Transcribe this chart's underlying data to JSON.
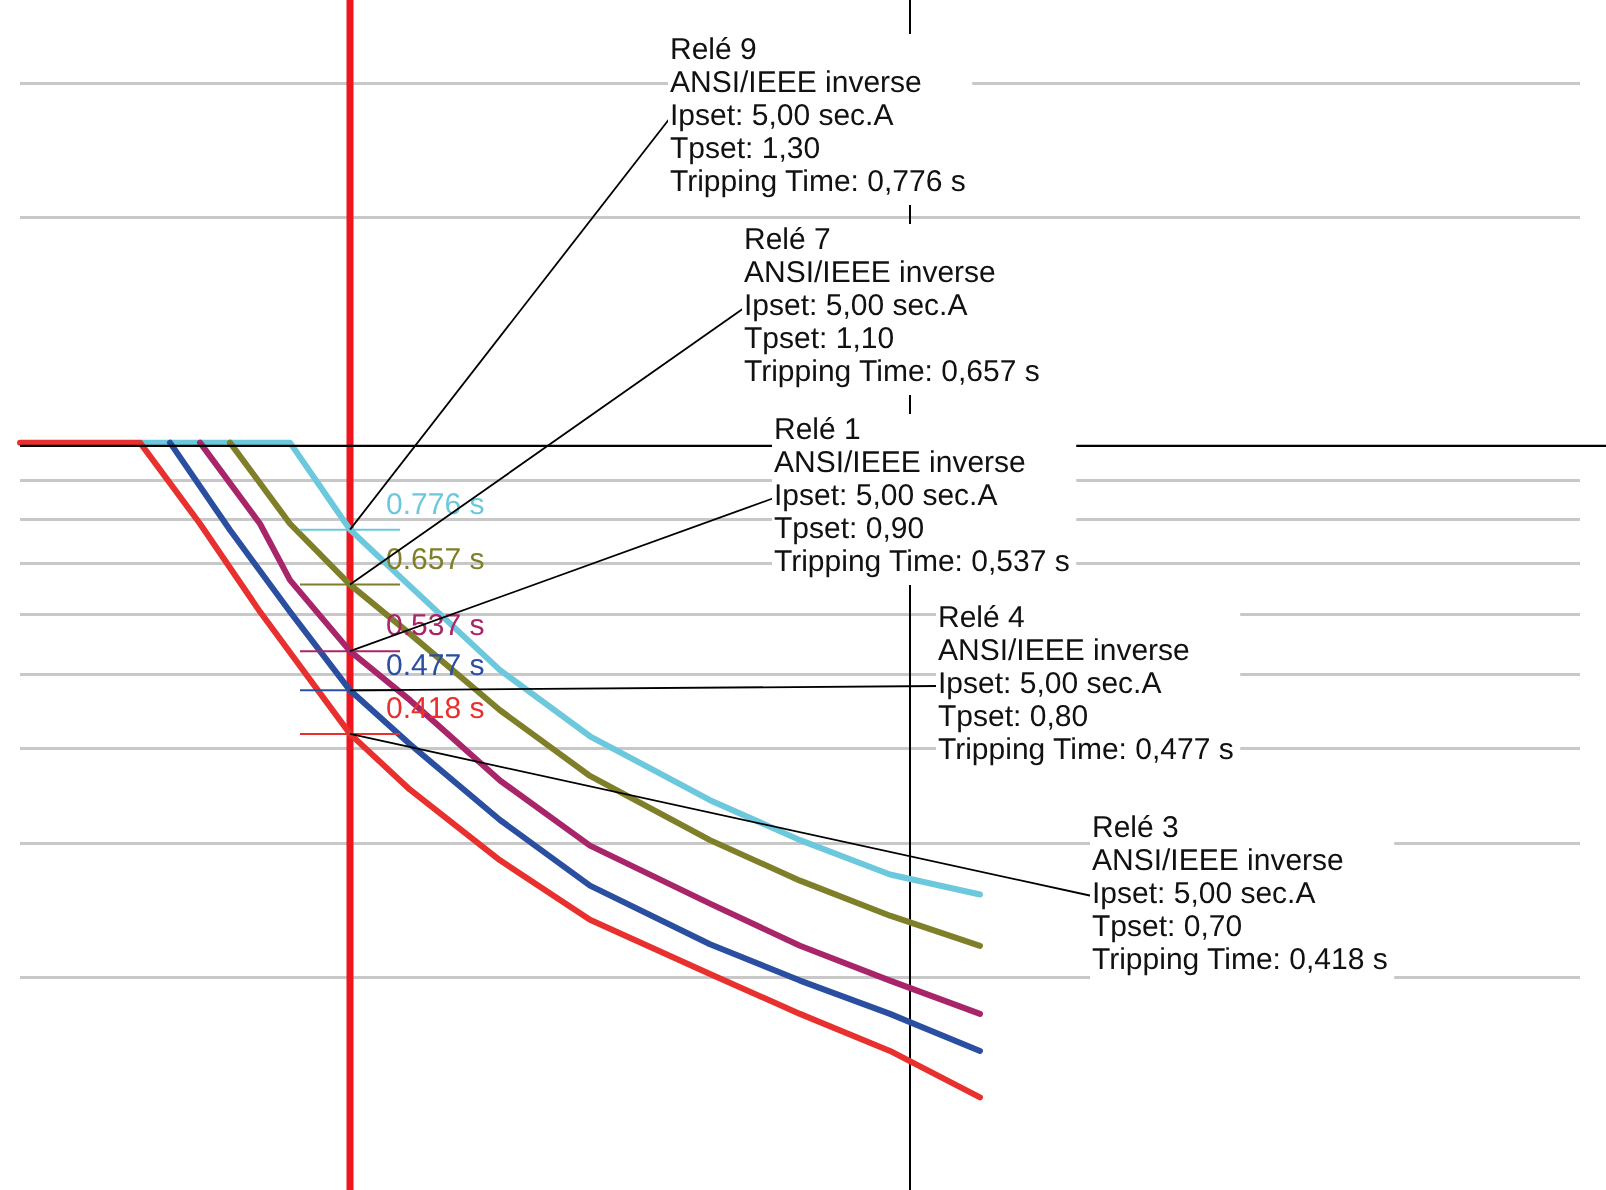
{
  "chart_data": {
    "type": "line",
    "categories": [
      null,
      null,
      null,
      null,
      null,
      null,
      null,
      null,
      null,
      null,
      null,
      null,
      null,
      null,
      null,
      null,
      null,
      null,
      null,
      null,
      null,
      null,
      null,
      null,
      null,
      null,
      null,
      null,
      null,
      null,
      null,
      null,
      null,
      null,
      null,
      null,
      null,
      null,
      null,
      null,
      null,
      null,
      null,
      null,
      null,
      null,
      null,
      null,
      null,
      null,
      null,
      null,
      null
    ],
    "series": [
      {
        "color": "#e8312f",
        "values": [
          1.01,
          null,
          null,
          null,
          1.01,
          null,
          0.79,
          null,
          0.605,
          null,
          null,
          0.418,
          null,
          0.353,
          null,
          null,
          0.285,
          null,
          null,
          0.238,
          null,
          null,
          null,
          0.202,
          null,
          null,
          0.179,
          null,
          null,
          0.16,
          null,
          null,
          0.139,
          null,
          null,
          null,
          null,
          null,
          null,
          null,
          null,
          null,
          null,
          null,
          null,
          null,
          null,
          null,
          null,
          null,
          null,
          null,
          null
        ],
        "value_labels": [
          null,
          null,
          null,
          null,
          null,
          null,
          null,
          null,
          null,
          null,
          null,
          "0.418 s",
          null,
          null,
          null,
          null,
          null,
          null,
          null,
          null,
          null,
          null,
          null,
          null,
          null,
          null,
          null,
          null,
          null,
          null,
          null,
          null,
          null,
          null,
          null,
          null,
          null,
          null,
          null,
          null,
          null,
          null,
          null,
          null,
          null,
          null,
          null,
          null,
          null,
          null,
          null,
          null,
          null
        ]
      },
      {
        "color": "#2a4fa0",
        "values": [
          null,
          null,
          null,
          null,
          null,
          1.01,
          null,
          0.775,
          null,
          0.605,
          null,
          0.477,
          null,
          0.405,
          null,
          null,
          0.322,
          null,
          null,
          0.264,
          null,
          null,
          null,
          0.221,
          null,
          null,
          0.198,
          null,
          null,
          0.179,
          null,
          null,
          0.16,
          null,
          null,
          null,
          null,
          null,
          null,
          null,
          null,
          null,
          null,
          null,
          null,
          null,
          null,
          null,
          null,
          null,
          null,
          null,
          null
        ],
        "value_labels": [
          null,
          null,
          null,
          null,
          null,
          null,
          null,
          null,
          null,
          null,
          null,
          "0.477 s",
          null,
          null,
          null,
          null,
          null,
          null,
          null,
          null,
          null,
          null,
          null,
          null,
          null,
          null,
          null,
          null,
          null,
          null,
          null,
          null,
          null,
          null,
          null,
          null,
          null,
          null,
          null,
          null,
          null,
          null,
          null,
          null,
          null,
          null,
          null,
          null,
          null,
          null,
          null,
          null,
          null
        ]
      },
      {
        "color": "#a8256a",
        "values": [
          null,
          null,
          null,
          null,
          null,
          null,
          1.01,
          null,
          0.79,
          0.666,
          null,
          0.537,
          null,
          0.463,
          null,
          null,
          0.363,
          null,
          null,
          0.298,
          null,
          null,
          null,
          0.25,
          null,
          null,
          0.22,
          null,
          null,
          0.198,
          null,
          null,
          0.179,
          null,
          null,
          null,
          null,
          null,
          null,
          null,
          null,
          null,
          null,
          null,
          null,
          null,
          null,
          null,
          null,
          null,
          null,
          null,
          null
        ],
        "value_labels": [
          null,
          null,
          null,
          null,
          null,
          null,
          null,
          null,
          null,
          null,
          null,
          "0.537 s",
          null,
          null,
          null,
          null,
          null,
          null,
          null,
          null,
          null,
          null,
          null,
          null,
          null,
          null,
          null,
          null,
          null,
          null,
          null,
          null,
          null,
          null,
          null,
          null,
          null,
          null,
          null,
          null,
          null,
          null,
          null,
          null,
          null,
          null,
          null,
          null,
          null,
          null,
          null,
          null,
          null
        ]
      },
      {
        "color": "#7f7f2a",
        "values": [
          null,
          null,
          null,
          null,
          null,
          null,
          null,
          1.01,
          null,
          0.79,
          null,
          0.657,
          null,
          0.566,
          null,
          null,
          0.449,
          null,
          null,
          0.368,
          null,
          null,
          null,
          0.303,
          null,
          null,
          0.268,
          null,
          null,
          0.241,
          null,
          null,
          0.22,
          null,
          null,
          null,
          null,
          null,
          null,
          null,
          null,
          null,
          null,
          null,
          null,
          null,
          null,
          null,
          null,
          null,
          null,
          null,
          null
        ],
        "value_labels": [
          null,
          null,
          null,
          null,
          null,
          null,
          null,
          null,
          null,
          null,
          null,
          "0.657 s",
          null,
          null,
          null,
          null,
          null,
          null,
          null,
          null,
          null,
          null,
          null,
          null,
          null,
          null,
          null,
          null,
          null,
          null,
          null,
          null,
          null,
          null,
          null,
          null,
          null,
          null,
          null,
          null,
          null,
          null,
          null,
          null,
          null,
          null,
          null,
          null,
          null,
          null,
          null,
          null,
          null
        ]
      },
      {
        "color": "#6cc8dc",
        "values": [
          null,
          null,
          null,
          null,
          1.01,
          null,
          null,
          null,
          null,
          1.01,
          null,
          0.776,
          null,
          0.654,
          null,
          null,
          0.507,
          null,
          null,
          0.415,
          null,
          null,
          null,
          0.342,
          null,
          null,
          0.303,
          null,
          null,
          0.273,
          null,
          null,
          0.257,
          null,
          null,
          null,
          null,
          null,
          null,
          null,
          null,
          null,
          null,
          null,
          null,
          null,
          null,
          null,
          null,
          null,
          null,
          null,
          null
        ],
        "value_labels": [
          null,
          null,
          null,
          null,
          null,
          null,
          null,
          null,
          null,
          null,
          null,
          "0.776 s",
          null,
          null,
          null,
          null,
          null,
          null,
          null,
          null,
          null,
          null,
          null,
          null,
          null,
          null,
          null,
          null,
          null,
          null,
          null,
          null,
          null,
          null,
          null,
          null,
          null,
          null,
          null,
          null,
          null,
          null,
          null,
          null,
          null,
          null,
          null,
          null,
          null,
          null,
          null,
          null,
          null
        ]
      }
    ],
    "log": "y",
    "ylim": [
      0.105,
      3.86
    ],
    "yticks": [
      {
        "value": 0.2,
        "label": null
      },
      {
        "value": 0.3,
        "label": null
      },
      {
        "value": 0.4,
        "label": null
      },
      {
        "value": 0.5,
        "label": null
      },
      {
        "value": 0.6,
        "label": null
      },
      {
        "value": 0.7,
        "label": null
      },
      {
        "value": 0.8,
        "label": null
      },
      {
        "value": 0.9,
        "label": null
      },
      {
        "value": 2,
        "label": null
      },
      {
        "value": 3,
        "label": null
      }
    ],
    "grid": "y",
    "tick_labels": false,
    "legend": false,
    "marker": "none",
    "line_style": "solid",
    "ref_lines": [
      {
        "axis": "y",
        "value": 1,
        "color": "#000000"
      }
    ],
    "annotations": [
      "Relé 9\nANSI/IEEE inverse\nIpset: 5,00 sec.A\nTpset: 1,30\nTripping Time: 0,776 s",
      "Relé 7\nANSI/IEEE inverse\nIpset: 5,00 sec.A\nTpset: 1,10\nTripping Time: 0,657 s",
      "Relé 1\nANSI/IEEE inverse\nIpset: 5,00 sec.A\nTpset: 0,90\nTripping Time: 0,537 s",
      "Relé 4\nANSI/IEEE inverse\nIpset: 5,00 sec.A\nTpset: 0,80\nTripping Time: 0,477 s",
      "Relé 3\nANSI/IEEE inverse\nIpset: 5,00 sec.A\nTpset: 0,70\nTripping Time: 0,418 s"
    ]
  }
}
